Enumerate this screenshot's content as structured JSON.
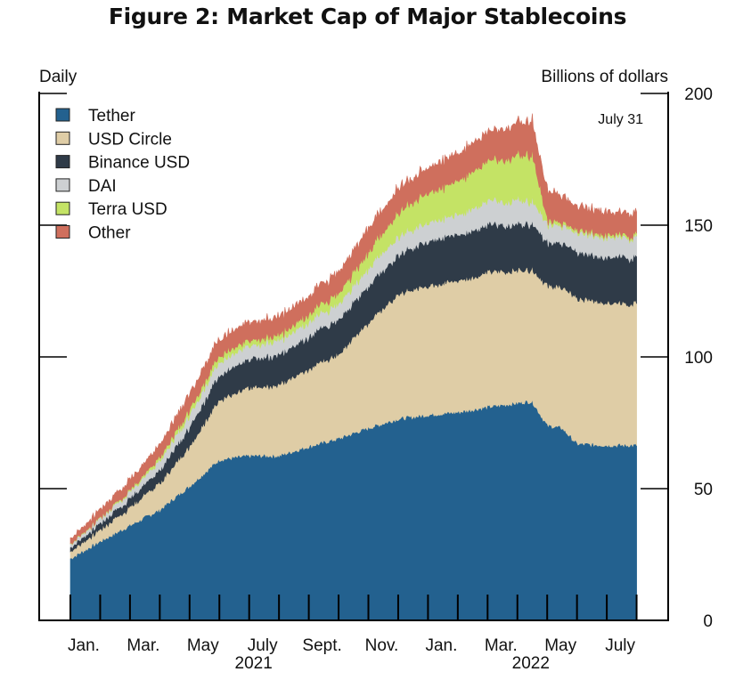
{
  "chart_data": {
    "type": "area",
    "stacked": true,
    "title": "Figure 2: Market Cap of Major Stablecoins",
    "left_label": "Daily",
    "ylabel": "Billions of dollars",
    "annotation": "July 31",
    "ylim": [
      0,
      200
    ],
    "yticks": [
      0,
      50,
      100,
      150,
      200
    ],
    "ytick_labels": [
      "0",
      "50",
      "100",
      "150",
      "200"
    ],
    "xrange_months": [
      -1,
      19.5
    ],
    "xtick_labels": [
      {
        "label": "Jan.",
        "month": 0
      },
      {
        "label": "Mar.",
        "month": 2
      },
      {
        "label": "May",
        "month": 4
      },
      {
        "label": "July",
        "month": 6
      },
      {
        "label": "Sept.",
        "month": 8
      },
      {
        "label": "Nov.",
        "month": 10
      },
      {
        "label": "Jan.",
        "month": 12
      },
      {
        "label": "Mar.",
        "month": 14
      },
      {
        "label": "May",
        "month": 16
      },
      {
        "label": "July",
        "month": 18
      }
    ],
    "minor_tick_months": [
      0,
      1,
      2,
      3,
      4,
      5,
      6,
      7,
      8,
      9,
      10,
      11,
      12,
      13,
      14,
      15,
      16,
      17,
      18,
      19
    ],
    "year_labels": [
      {
        "label": "2021",
        "month": 6
      },
      {
        "label": "2022",
        "month": 15.3
      }
    ],
    "legend_position": "top-left",
    "x_months": [
      0,
      1,
      2,
      3,
      4,
      5,
      6,
      7,
      8,
      9,
      10,
      11,
      12,
      13,
      14,
      15,
      15.3,
      15.5,
      16,
      16.5,
      17,
      18,
      19
    ],
    "x_dates": [
      "2021-01-01",
      "2021-02-01",
      "2021-03-01",
      "2021-04-01",
      "2021-05-01",
      "2021-06-01",
      "2021-07-01",
      "2021-08-01",
      "2021-09-01",
      "2021-10-01",
      "2021-11-01",
      "2021-12-01",
      "2022-01-01",
      "2022-02-01",
      "2022-03-01",
      "2022-04-01",
      "2022-04-10",
      "2022-04-15",
      "2022-05-01",
      "2022-05-15",
      "2022-06-01",
      "2022-07-01",
      "2022-07-31"
    ],
    "series": [
      {
        "name": "Tether",
        "color": "#23618f",
        "values": [
          23.5,
          30,
          36,
          42,
          51,
          61,
          62.5,
          62.5,
          66,
          69,
          73,
          76.5,
          78,
          79,
          81,
          82.5,
          83,
          83,
          74,
          73,
          67,
          66.5,
          66.5
        ]
      },
      {
        "name": "USD Circle",
        "color": "#dfcda6",
        "values": [
          2.5,
          4.5,
          7,
          10,
          15,
          23,
          25.5,
          27,
          29.5,
          32,
          40,
          47.5,
          49,
          50,
          51,
          50.5,
          50,
          50,
          53,
          53.5,
          55,
          54.5,
          53.5
        ]
      },
      {
        "name": "Binance USD",
        "color": "#2f3b48",
        "values": [
          1.5,
          2.5,
          3.5,
          5,
          7.5,
          9.5,
          11,
          11.5,
          12.5,
          13,
          14,
          15,
          17,
          17.5,
          18,
          17.5,
          17.5,
          17.5,
          16.5,
          17,
          17.5,
          17.5,
          17.5
        ]
      },
      {
        "name": "DAI",
        "color": "#cdd0d2",
        "values": [
          1.2,
          1.8,
          2.5,
          3.5,
          4.5,
          5,
          5,
          5.5,
          5.5,
          6,
          6.5,
          7,
          7,
          7.5,
          9,
          9,
          9,
          8.5,
          7,
          6.5,
          7.5,
          7.5,
          7.5
        ]
      },
      {
        "name": "Terra USD",
        "color": "#c4e365",
        "values": [
          0.2,
          0.3,
          0.6,
          1.2,
          2,
          2.3,
          2,
          2,
          3,
          4,
          6,
          9,
          11,
          13,
          15,
          17,
          17.5,
          17.5,
          1.5,
          1.2,
          1,
          1,
          1
        ]
      },
      {
        "name": "Other",
        "color": "#cf6f5d",
        "values": [
          2,
          3,
          4,
          5,
          6,
          6.5,
          7,
          7,
          7,
          8,
          9,
          9,
          9.5,
          10.5,
          11,
          12.5,
          12.5,
          12.5,
          11.5,
          10,
          9,
          8.5,
          8.5
        ]
      }
    ]
  }
}
